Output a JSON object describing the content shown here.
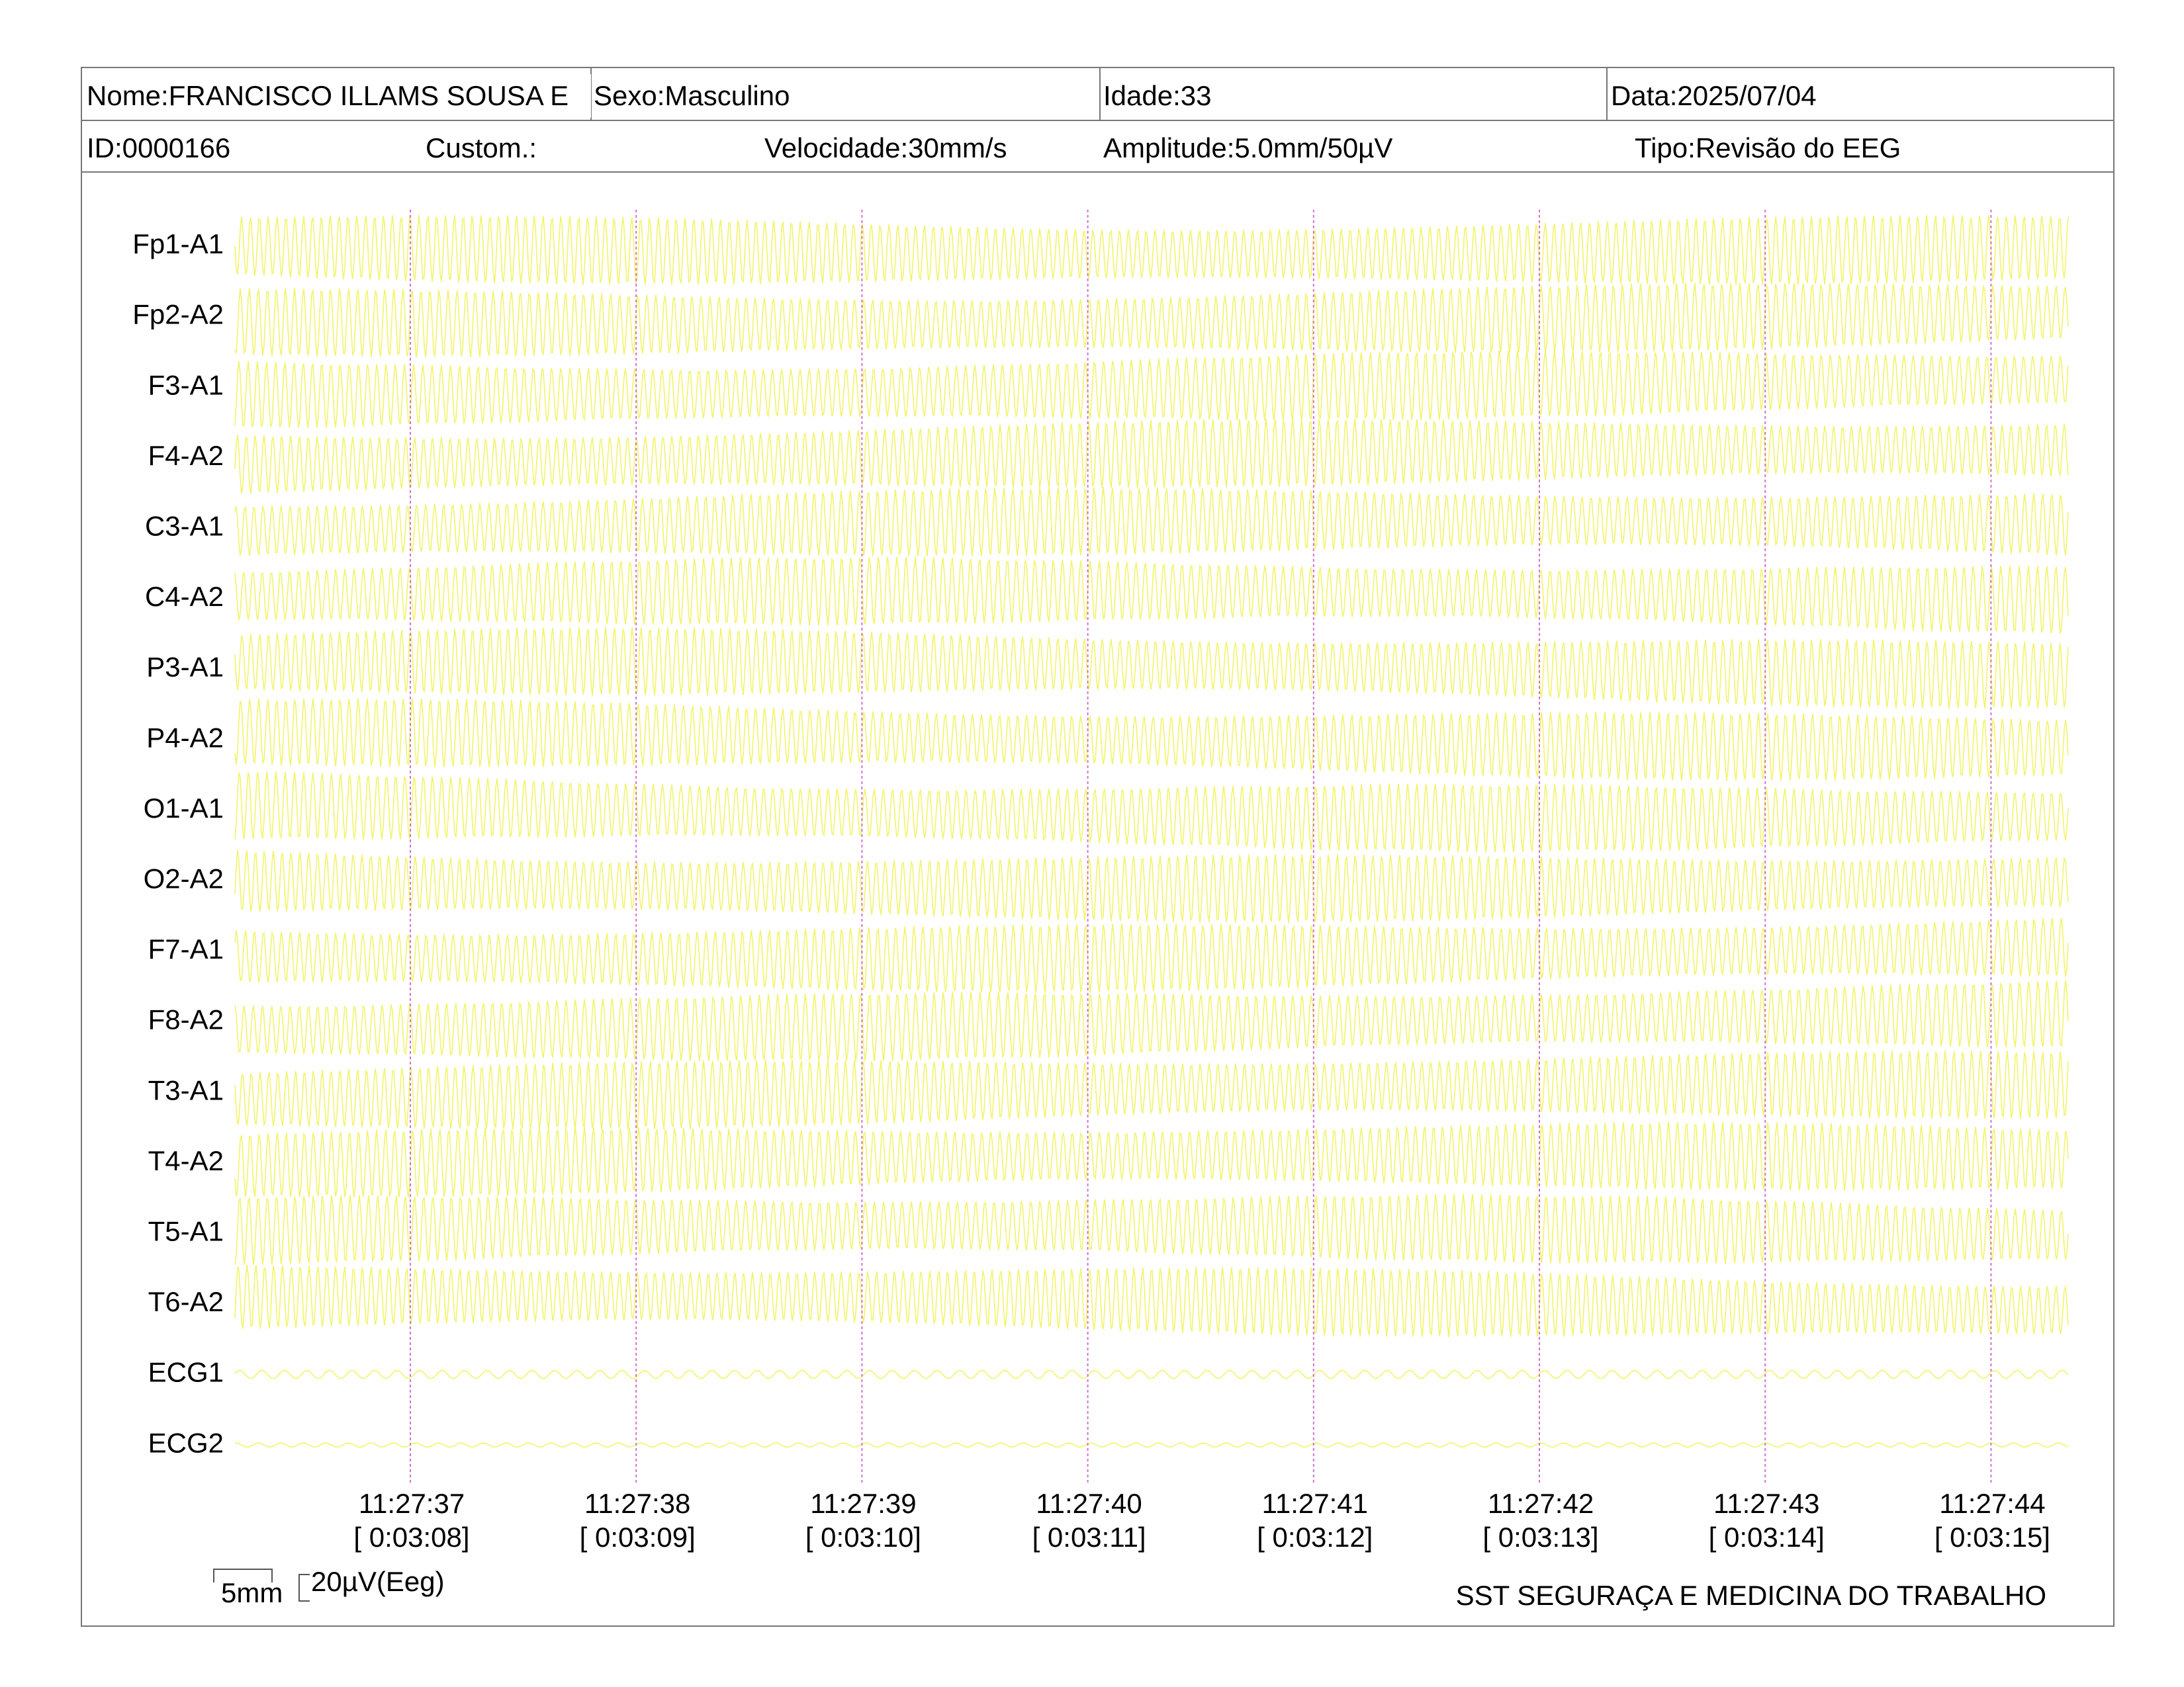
{
  "header": {
    "name": "Nome:FRANCISCO ILLAMS SOUSA E",
    "sex": "Sexo:Masculino",
    "age": "Idade:33",
    "date": "Data:2025/07/04",
    "id": "ID:0000166",
    "custom": "Custom.:",
    "speed": "Velocidade:30mm/s",
    "amplitude": "Amplitude:5.0mm/50µV",
    "type": "Tipo:Revisão do EEG"
  },
  "channels": [
    "Fp1-A1",
    "Fp2-A2",
    "F3-A1",
    "F4-A2",
    "C3-A1",
    "C4-A2",
    "P3-A1",
    "P4-A2",
    "O1-A1",
    "O2-A2",
    "F7-A1",
    "F8-A2",
    "T3-A1",
    "T4-A2",
    "T5-A1",
    "T6-A2",
    "ECG1",
    "ECG2"
  ],
  "time_marks": [
    {
      "clock": "11:27:37",
      "elapsed": "[ 0:03:08]"
    },
    {
      "clock": "11:27:38",
      "elapsed": "[ 0:03:09]"
    },
    {
      "clock": "11:27:39",
      "elapsed": "[ 0:03:10]"
    },
    {
      "clock": "11:27:40",
      "elapsed": "[ 0:03:11]"
    },
    {
      "clock": "11:27:41",
      "elapsed": "[ 0:03:12]"
    },
    {
      "clock": "11:27:42",
      "elapsed": "[ 0:03:13]"
    },
    {
      "clock": "11:27:43",
      "elapsed": "[ 0:03:14]"
    },
    {
      "clock": "11:27:44",
      "elapsed": "[ 0:03:15]"
    }
  ],
  "scale": {
    "length": "5mm",
    "voltage": "20µV(Eeg)"
  },
  "footer": "SST SEGURAÇA E MEDICINA DO TRABALHO"
}
